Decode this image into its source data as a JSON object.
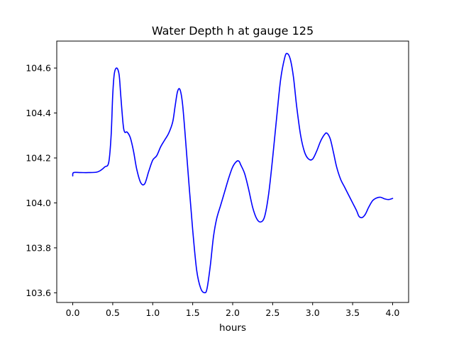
{
  "chart_data": {
    "type": "line",
    "title": "Water Depth h at gauge 125",
    "xlabel": "hours",
    "ylabel": "",
    "xlim": [
      -0.2,
      4.2
    ],
    "ylim": [
      103.557,
      104.72
    ],
    "xticks": [
      0.0,
      0.5,
      1.0,
      1.5,
      2.0,
      2.5,
      3.0,
      3.5,
      4.0
    ],
    "xtick_labels": [
      "0.0",
      "0.5",
      "1.0",
      "1.5",
      "2.0",
      "2.5",
      "3.0",
      "3.5",
      "4.0"
    ],
    "yticks": [
      103.6,
      103.8,
      104.0,
      104.2,
      104.4,
      104.6
    ],
    "ytick_labels": [
      "103.6",
      "103.8",
      "104.0",
      "104.2",
      "104.4",
      "104.6"
    ],
    "grid": false,
    "legend": false,
    "line_color": "#0000ff",
    "series": [
      {
        "x": [
          0.0,
          0.01,
          0.1,
          0.2,
          0.3,
          0.35,
          0.4,
          0.45,
          0.48,
          0.5,
          0.52,
          0.55,
          0.58,
          0.6,
          0.63,
          0.65,
          0.68,
          0.72,
          0.76,
          0.8,
          0.85,
          0.9,
          0.95,
          1.0,
          1.05,
          1.1,
          1.15,
          1.2,
          1.25,
          1.28,
          1.31,
          1.34,
          1.37,
          1.4,
          1.45,
          1.5,
          1.55,
          1.6,
          1.65,
          1.68,
          1.72,
          1.76,
          1.8,
          1.85,
          1.9,
          1.95,
          2.0,
          2.05,
          2.08,
          2.1,
          2.15,
          2.2,
          2.25,
          2.3,
          2.35,
          2.4,
          2.45,
          2.5,
          2.55,
          2.6,
          2.65,
          2.68,
          2.72,
          2.76,
          2.8,
          2.85,
          2.9,
          2.95,
          3.0,
          3.05,
          3.1,
          3.15,
          3.18,
          3.22,
          3.26,
          3.3,
          3.35,
          3.4,
          3.45,
          3.5,
          3.55,
          3.58,
          3.62,
          3.66,
          3.7,
          3.75,
          3.8,
          3.85,
          3.9,
          3.95,
          4.0
        ],
        "y": [
          104.12,
          104.135,
          104.135,
          104.135,
          104.137,
          104.145,
          104.16,
          104.18,
          104.3,
          104.48,
          104.575,
          104.6,
          104.57,
          104.48,
          104.35,
          104.315,
          104.315,
          104.29,
          104.23,
          104.15,
          104.09,
          104.085,
          104.14,
          104.19,
          104.21,
          104.25,
          104.28,
          104.31,
          104.36,
          104.43,
          104.495,
          104.505,
          104.45,
          104.33,
          104.1,
          103.88,
          103.7,
          103.62,
          103.6,
          103.62,
          103.72,
          103.85,
          103.93,
          103.99,
          104.05,
          104.11,
          104.16,
          104.185,
          104.185,
          104.17,
          104.13,
          104.06,
          103.98,
          103.93,
          103.915,
          103.94,
          104.04,
          104.2,
          104.38,
          104.55,
          104.645,
          104.665,
          104.64,
          104.56,
          104.43,
          104.3,
          104.225,
          104.195,
          104.195,
          104.23,
          104.275,
          104.305,
          104.31,
          104.285,
          104.225,
          104.16,
          104.105,
          104.07,
          104.035,
          104.0,
          103.965,
          103.94,
          103.935,
          103.95,
          103.98,
          104.01,
          104.022,
          104.025,
          104.018,
          104.015,
          104.02
        ]
      }
    ]
  }
}
